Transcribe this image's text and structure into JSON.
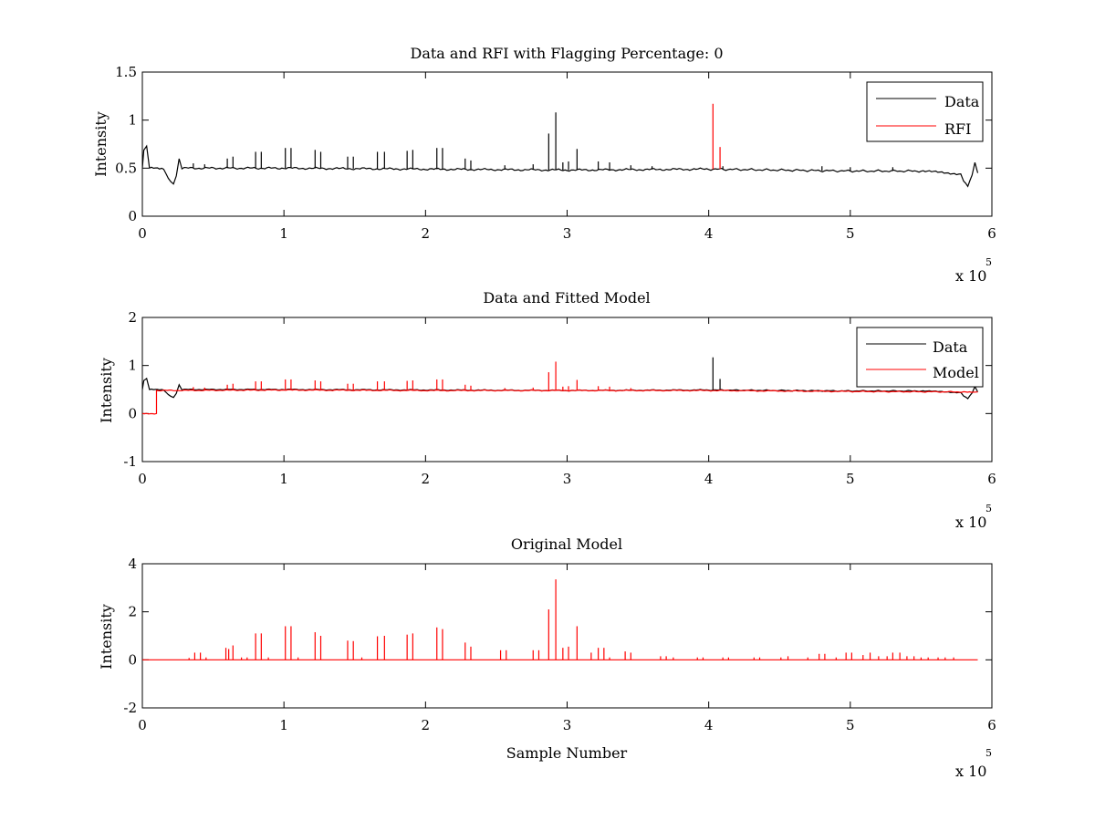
{
  "colors": {
    "data": "#000000",
    "rfi": "#ff0000",
    "model": "#ff0000",
    "background": "#ffffff",
    "axes": "#000000"
  },
  "chart_data": [
    {
      "type": "line",
      "title": "Data and RFI with Flagging Percentage: 0",
      "xlabel": "",
      "ylabel": "Intensity",
      "xlim": [
        0,
        600000
      ],
      "ylim": [
        0,
        1.5
      ],
      "x_ticks": [
        0,
        1,
        2,
        3,
        4,
        5,
        6
      ],
      "y_ticks": [
        0,
        0.5,
        1,
        1.5
      ],
      "x_exponent": {
        "base": "x 10",
        "power": "5"
      },
      "legend": {
        "placement": "top-right",
        "entries": [
          "Data",
          "RFI"
        ]
      },
      "grid": false,
      "series": [
        {
          "name": "Data",
          "color": "#000000",
          "baseline": [
            [
              0,
              0.5
            ],
            [
              1000,
              0.68
            ],
            [
              3000,
              0.72
            ],
            [
              5000,
              0.5
            ],
            [
              15000,
              0.49
            ],
            [
              20000,
              0.36
            ],
            [
              22000,
              0.34
            ],
            [
              24000,
              0.42
            ],
            [
              26000,
              0.6
            ],
            [
              28000,
              0.5
            ],
            [
              100000,
              0.5
            ],
            [
              200000,
              0.49
            ],
            [
              300000,
              0.48
            ],
            [
              400000,
              0.49
            ],
            [
              450000,
              0.48
            ],
            [
              500000,
              0.47
            ],
            [
              550000,
              0.47
            ],
            [
              578000,
              0.44
            ],
            [
              580000,
              0.36
            ],
            [
              583000,
              0.31
            ],
            [
              586000,
              0.42
            ],
            [
              588000,
              0.56
            ],
            [
              590000,
              0.45
            ]
          ],
          "spikes": [
            [
              36000,
              0.55
            ],
            [
              44000,
              0.54
            ],
            [
              60000,
              0.6
            ],
            [
              64000,
              0.62
            ],
            [
              80000,
              0.67
            ],
            [
              84000,
              0.67
            ],
            [
              101000,
              0.71
            ],
            [
              105000,
              0.71
            ],
            [
              122000,
              0.69
            ],
            [
              126000,
              0.67
            ],
            [
              145000,
              0.62
            ],
            [
              149000,
              0.62
            ],
            [
              166000,
              0.67
            ],
            [
              171000,
              0.67
            ],
            [
              187000,
              0.68
            ],
            [
              191000,
              0.69
            ],
            [
              208000,
              0.71
            ],
            [
              212000,
              0.71
            ],
            [
              228000,
              0.6
            ],
            [
              232000,
              0.58
            ],
            [
              256000,
              0.53
            ],
            [
              276000,
              0.54
            ],
            [
              287000,
              0.86
            ],
            [
              292000,
              1.08
            ],
            [
              297000,
              0.56
            ],
            [
              301000,
              0.57
            ],
            [
              307000,
              0.7
            ],
            [
              322000,
              0.57
            ],
            [
              330000,
              0.56
            ],
            [
              345000,
              0.53
            ],
            [
              360000,
              0.52
            ],
            [
              410000,
              0.52
            ],
            [
              480000,
              0.52
            ],
            [
              500000,
              0.51
            ],
            [
              530000,
              0.51
            ]
          ]
        },
        {
          "name": "RFI",
          "color": "#ff0000",
          "spikes": [
            [
              403000,
              1.17
            ],
            [
              408000,
              0.72
            ]
          ]
        }
      ]
    },
    {
      "type": "line",
      "title": "Data and Fitted Model",
      "xlabel": "",
      "ylabel": "Intensity",
      "xlim": [
        0,
        600000
      ],
      "ylim": [
        -1,
        2
      ],
      "x_ticks": [
        0,
        1,
        2,
        3,
        4,
        5,
        6
      ],
      "y_ticks": [
        -1,
        0,
        1,
        2
      ],
      "x_exponent": {
        "base": "x 10",
        "power": "5"
      },
      "legend": {
        "placement": "top-right",
        "entries": [
          "Data",
          "Model"
        ]
      },
      "grid": false,
      "series": [
        {
          "name": "Data",
          "color": "#000000",
          "baseline": [
            [
              0,
              0.5
            ],
            [
              1000,
              0.68
            ],
            [
              3000,
              0.72
            ],
            [
              5000,
              0.5
            ],
            [
              15000,
              0.49
            ],
            [
              20000,
              0.36
            ],
            [
              22000,
              0.34
            ],
            [
              24000,
              0.42
            ],
            [
              26000,
              0.6
            ],
            [
              28000,
              0.5
            ],
            [
              100000,
              0.5
            ],
            [
              200000,
              0.49
            ],
            [
              300000,
              0.48
            ],
            [
              400000,
              0.49
            ],
            [
              450000,
              0.48
            ],
            [
              500000,
              0.47
            ],
            [
              550000,
              0.47
            ],
            [
              578000,
              0.44
            ],
            [
              580000,
              0.36
            ],
            [
              583000,
              0.31
            ],
            [
              586000,
              0.42
            ],
            [
              588000,
              0.56
            ],
            [
              590000,
              0.45
            ]
          ],
          "spikes": [
            [
              403000,
              1.17
            ],
            [
              408000,
              0.72
            ]
          ]
        },
        {
          "name": "Model",
          "color": "#ff0000",
          "baseline": [
            [
              0,
              0.0
            ],
            [
              10000,
              0.0
            ],
            [
              10000,
              0.48
            ],
            [
              100000,
              0.49
            ],
            [
              200000,
              0.48
            ],
            [
              300000,
              0.48
            ],
            [
              400000,
              0.48
            ],
            [
              500000,
              0.46
            ],
            [
              580000,
              0.45
            ],
            [
              590000,
              0.45
            ]
          ],
          "spikes": [
            [
              36000,
              0.55
            ],
            [
              44000,
              0.54
            ],
            [
              60000,
              0.6
            ],
            [
              64000,
              0.62
            ],
            [
              80000,
              0.67
            ],
            [
              84000,
              0.67
            ],
            [
              101000,
              0.71
            ],
            [
              105000,
              0.71
            ],
            [
              122000,
              0.69
            ],
            [
              126000,
              0.67
            ],
            [
              145000,
              0.62
            ],
            [
              149000,
              0.62
            ],
            [
              166000,
              0.67
            ],
            [
              171000,
              0.67
            ],
            [
              187000,
              0.68
            ],
            [
              191000,
              0.69
            ],
            [
              208000,
              0.71
            ],
            [
              212000,
              0.71
            ],
            [
              228000,
              0.6
            ],
            [
              232000,
              0.58
            ],
            [
              256000,
              0.53
            ],
            [
              276000,
              0.54
            ],
            [
              287000,
              0.86
            ],
            [
              292000,
              1.08
            ],
            [
              297000,
              0.56
            ],
            [
              301000,
              0.57
            ],
            [
              307000,
              0.7
            ],
            [
              322000,
              0.57
            ],
            [
              330000,
              0.56
            ],
            [
              345000,
              0.53
            ]
          ]
        }
      ]
    },
    {
      "type": "line",
      "title": "Original Model",
      "xlabel": "Sample Number",
      "ylabel": "Intensity",
      "xlim": [
        0,
        600000
      ],
      "ylim": [
        -2,
        4
      ],
      "x_ticks": [
        0,
        1,
        2,
        3,
        4,
        5,
        6
      ],
      "y_ticks": [
        -2,
        0,
        2,
        4
      ],
      "x_exponent": {
        "base": "x 10",
        "power": "5"
      },
      "legend": null,
      "grid": false,
      "series": [
        {
          "name": "Original Model",
          "color": "#ff0000",
          "baseline": [
            [
              0,
              0.0
            ],
            [
              590000,
              0.0
            ]
          ],
          "spikes": [
            [
              33000,
              0.08
            ],
            [
              37000,
              0.3
            ],
            [
              41000,
              0.3
            ],
            [
              45000,
              0.1
            ],
            [
              59000,
              0.5
            ],
            [
              61000,
              0.45
            ],
            [
              64000,
              0.6
            ],
            [
              70000,
              0.1
            ],
            [
              74000,
              0.1
            ],
            [
              80000,
              1.1
            ],
            [
              84000,
              1.1
            ],
            [
              89000,
              0.1
            ],
            [
              101000,
              1.4
            ],
            [
              105000,
              1.4
            ],
            [
              110000,
              0.1
            ],
            [
              122000,
              1.15
            ],
            [
              126000,
              1.0
            ],
            [
              145000,
              0.8
            ],
            [
              149000,
              0.78
            ],
            [
              155000,
              0.1
            ],
            [
              166000,
              0.98
            ],
            [
              171000,
              1.0
            ],
            [
              187000,
              1.05
            ],
            [
              191000,
              1.1
            ],
            [
              208000,
              1.35
            ],
            [
              212000,
              1.28
            ],
            [
              228000,
              0.72
            ],
            [
              232000,
              0.55
            ],
            [
              253000,
              0.4
            ],
            [
              257000,
              0.4
            ],
            [
              276000,
              0.4
            ],
            [
              280000,
              0.4
            ],
            [
              287000,
              2.1
            ],
            [
              292000,
              3.35
            ],
            [
              297000,
              0.5
            ],
            [
              301000,
              0.55
            ],
            [
              307000,
              1.4
            ],
            [
              317000,
              0.3
            ],
            [
              322000,
              0.5
            ],
            [
              326000,
              0.5
            ],
            [
              330000,
              0.1
            ],
            [
              341000,
              0.35
            ],
            [
              345000,
              0.3
            ],
            [
              366000,
              0.15
            ],
            [
              370000,
              0.15
            ],
            [
              375000,
              0.1
            ],
            [
              392000,
              0.1
            ],
            [
              396000,
              0.1
            ],
            [
              410000,
              0.1
            ],
            [
              414000,
              0.1
            ],
            [
              432000,
              0.1
            ],
            [
              436000,
              0.1
            ],
            [
              451000,
              0.1
            ],
            [
              456000,
              0.15
            ],
            [
              470000,
              0.1
            ],
            [
              478000,
              0.25
            ],
            [
              482000,
              0.25
            ],
            [
              490000,
              0.1
            ],
            [
              497000,
              0.3
            ],
            [
              501000,
              0.3
            ],
            [
              509000,
              0.2
            ],
            [
              514000,
              0.3
            ],
            [
              520000,
              0.15
            ],
            [
              526000,
              0.15
            ],
            [
              530000,
              0.3
            ],
            [
              535000,
              0.3
            ],
            [
              540000,
              0.15
            ],
            [
              545000,
              0.15
            ],
            [
              550000,
              0.1
            ],
            [
              555000,
              0.1
            ],
            [
              562000,
              0.1
            ],
            [
              567000,
              0.1
            ],
            [
              573000,
              0.1
            ]
          ]
        }
      ]
    }
  ]
}
